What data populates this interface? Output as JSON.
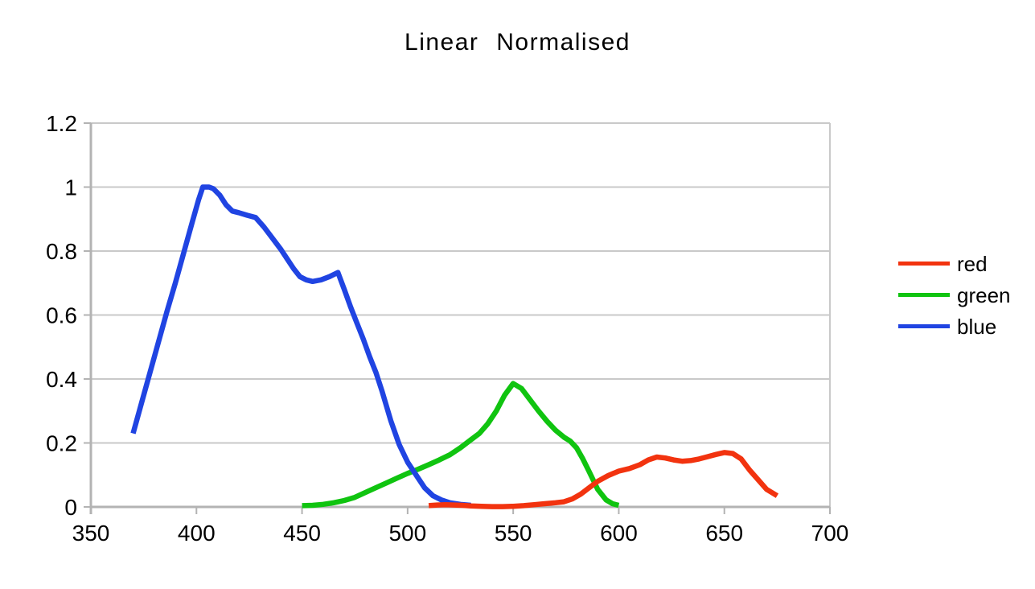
{
  "title": "Linear Normalised",
  "chart_data": {
    "type": "line",
    "title": "Linear Normalised",
    "xlabel": "",
    "ylabel": "",
    "xlim": [
      350,
      700
    ],
    "ylim": [
      0,
      1.2
    ],
    "grid": "horizontal",
    "legend_position": "right",
    "axis_color": "#b3b3b3",
    "grid_color": "#c9c9c9",
    "x_ticks": [
      {
        "value": 350,
        "label": "350"
      },
      {
        "value": 400,
        "label": "400"
      },
      {
        "value": 450,
        "label": "450"
      },
      {
        "value": 500,
        "label": "500"
      },
      {
        "value": 550,
        "label": "550"
      },
      {
        "value": 600,
        "label": "600"
      },
      {
        "value": 650,
        "label": "650"
      },
      {
        "value": 700,
        "label": "700"
      }
    ],
    "y_ticks": [
      {
        "value": 0,
        "label": "0"
      },
      {
        "value": 0.2,
        "label": "0.2"
      },
      {
        "value": 0.4,
        "label": "0.4"
      },
      {
        "value": 0.6,
        "label": "0.6"
      },
      {
        "value": 0.8,
        "label": "0.8"
      },
      {
        "value": 1,
        "label": "1"
      },
      {
        "value": 1.2,
        "label": "1.2"
      }
    ],
    "series": [
      {
        "name": "red",
        "color": "#f2330f",
        "x": [
          510,
          514,
          518,
          522,
          526,
          530,
          535,
          540,
          545,
          550,
          555,
          560,
          565,
          570,
          574,
          578,
          582,
          586,
          590,
          595,
          600,
          605,
          610,
          614,
          618,
          622,
          626,
          630,
          634,
          638,
          642,
          646,
          650,
          654,
          658,
          662,
          666,
          670,
          675
        ],
        "y": [
          0.004,
          0.006,
          0.007,
          0.006,
          0.005,
          0.003,
          0.002,
          0.001,
          0.001,
          0.002,
          0.004,
          0.007,
          0.01,
          0.013,
          0.016,
          0.025,
          0.04,
          0.06,
          0.08,
          0.098,
          0.112,
          0.12,
          0.132,
          0.147,
          0.156,
          0.153,
          0.147,
          0.143,
          0.145,
          0.15,
          0.157,
          0.164,
          0.17,
          0.167,
          0.15,
          0.115,
          0.085,
          0.055,
          0.035
        ]
      },
      {
        "name": "green",
        "color": "#10c410",
        "x": [
          450,
          455,
          460,
          465,
          470,
          475,
          480,
          485,
          490,
          495,
          500,
          505,
          510,
          515,
          520,
          525,
          530,
          534,
          538,
          542,
          546,
          550,
          554,
          558,
          562,
          566,
          570,
          574,
          577,
          580,
          583,
          586,
          590,
          594,
          597,
          600
        ],
        "y": [
          0.004,
          0.005,
          0.008,
          0.013,
          0.02,
          0.03,
          0.045,
          0.06,
          0.075,
          0.09,
          0.105,
          0.118,
          0.132,
          0.147,
          0.163,
          0.185,
          0.21,
          0.23,
          0.26,
          0.3,
          0.35,
          0.386,
          0.37,
          0.335,
          0.3,
          0.268,
          0.24,
          0.218,
          0.206,
          0.185,
          0.15,
          0.11,
          0.055,
          0.022,
          0.01,
          0.005
        ]
      },
      {
        "name": "blue",
        "color": "#2044e2",
        "x": [
          370,
          374,
          378,
          382,
          386,
          390,
          394,
          398,
          401,
          403,
          406,
          408,
          411,
          414,
          417,
          420,
          424,
          428,
          432,
          436,
          440,
          443,
          446,
          449,
          452,
          455,
          459,
          463,
          467,
          470,
          473,
          476,
          479,
          482,
          485,
          488,
          492,
          496,
          500,
          504,
          508,
          512,
          516,
          520,
          525,
          530
        ],
        "y": [
          0.23,
          0.325,
          0.42,
          0.515,
          0.61,
          0.7,
          0.795,
          0.89,
          0.96,
          1.0,
          1.0,
          0.995,
          0.975,
          0.945,
          0.925,
          0.92,
          0.912,
          0.905,
          0.875,
          0.84,
          0.805,
          0.775,
          0.745,
          0.72,
          0.71,
          0.705,
          0.71,
          0.72,
          0.733,
          0.68,
          0.625,
          0.575,
          0.525,
          0.47,
          0.42,
          0.36,
          0.27,
          0.195,
          0.14,
          0.1,
          0.06,
          0.035,
          0.022,
          0.013,
          0.008,
          0.005
        ]
      }
    ],
    "draw_order": [
      1,
      2,
      0
    ]
  }
}
